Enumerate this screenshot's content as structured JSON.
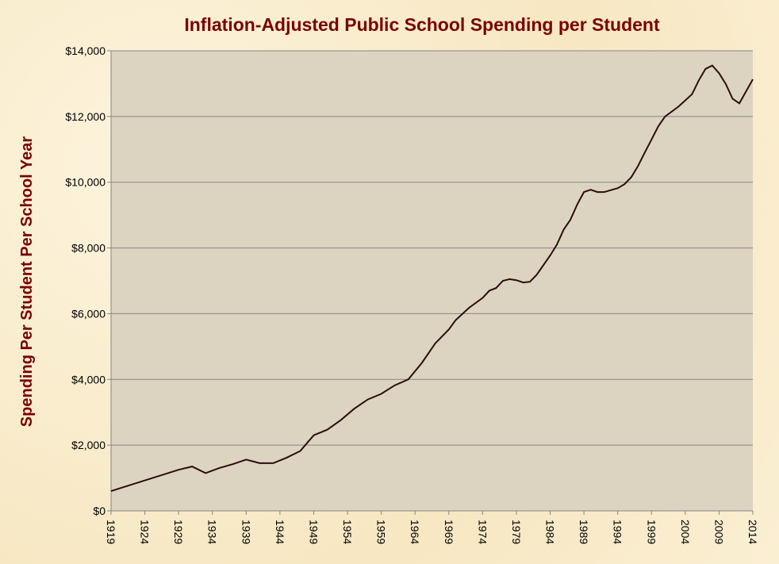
{
  "chart_data": {
    "type": "line",
    "title": "Inflation-Adjusted  Public School Spending per Student",
    "xlabel": "",
    "ylabel": "Spending Per Student Per School Year",
    "xlim": [
      1919,
      2014
    ],
    "ylim": [
      0,
      14000
    ],
    "grid": true,
    "x_ticks": [
      1919,
      1924,
      1929,
      1934,
      1939,
      1944,
      1949,
      1954,
      1959,
      1964,
      1969,
      1974,
      1979,
      1984,
      1989,
      1994,
      1999,
      2004,
      2009,
      2014
    ],
    "y_ticks": [
      "$0",
      "$2,000",
      "$4,000",
      "$6,000",
      "$8,000",
      "$10,000",
      "$12,000",
      "$14,000"
    ],
    "y_tick_values": [
      0,
      2000,
      4000,
      6000,
      8000,
      10000,
      12000,
      14000
    ],
    "series": [
      {
        "name": "Spending per student",
        "color": "#2a0d0d",
        "x": [
          1919,
          1929,
          1931,
          1933,
          1935,
          1937,
          1939,
          1941,
          1943,
          1945,
          1947,
          1949,
          1951,
          1953,
          1955,
          1957,
          1959,
          1961,
          1963,
          1965,
          1967,
          1969,
          1970,
          1972,
          1974,
          1975,
          1976,
          1977,
          1978,
          1979,
          1980,
          1981,
          1982,
          1984,
          1985,
          1986,
          1987,
          1988,
          1989,
          1990,
          1991,
          1992,
          1994,
          1995,
          1996,
          1997,
          1998,
          1999,
          2000,
          2001,
          2003,
          2005,
          2006,
          2007,
          2008,
          2009,
          2010,
          2011,
          2012,
          2014
        ],
        "y": [
          600,
          1250,
          1350,
          1150,
          1300,
          1420,
          1560,
          1450,
          1450,
          1620,
          1820,
          2300,
          2470,
          2760,
          3110,
          3390,
          3560,
          3820,
          4000,
          4500,
          5100,
          5520,
          5800,
          6180,
          6480,
          6700,
          6780,
          7000,
          7050,
          7020,
          6950,
          6970,
          7180,
          7770,
          8100,
          8560,
          8860,
          9320,
          9700,
          9770,
          9700,
          9700,
          9820,
          9940,
          10150,
          10490,
          10900,
          11300,
          11700,
          12000,
          12300,
          12680,
          13100,
          13450,
          13550,
          13320,
          12990,
          12540,
          12400,
          13130
        ]
      }
    ]
  }
}
